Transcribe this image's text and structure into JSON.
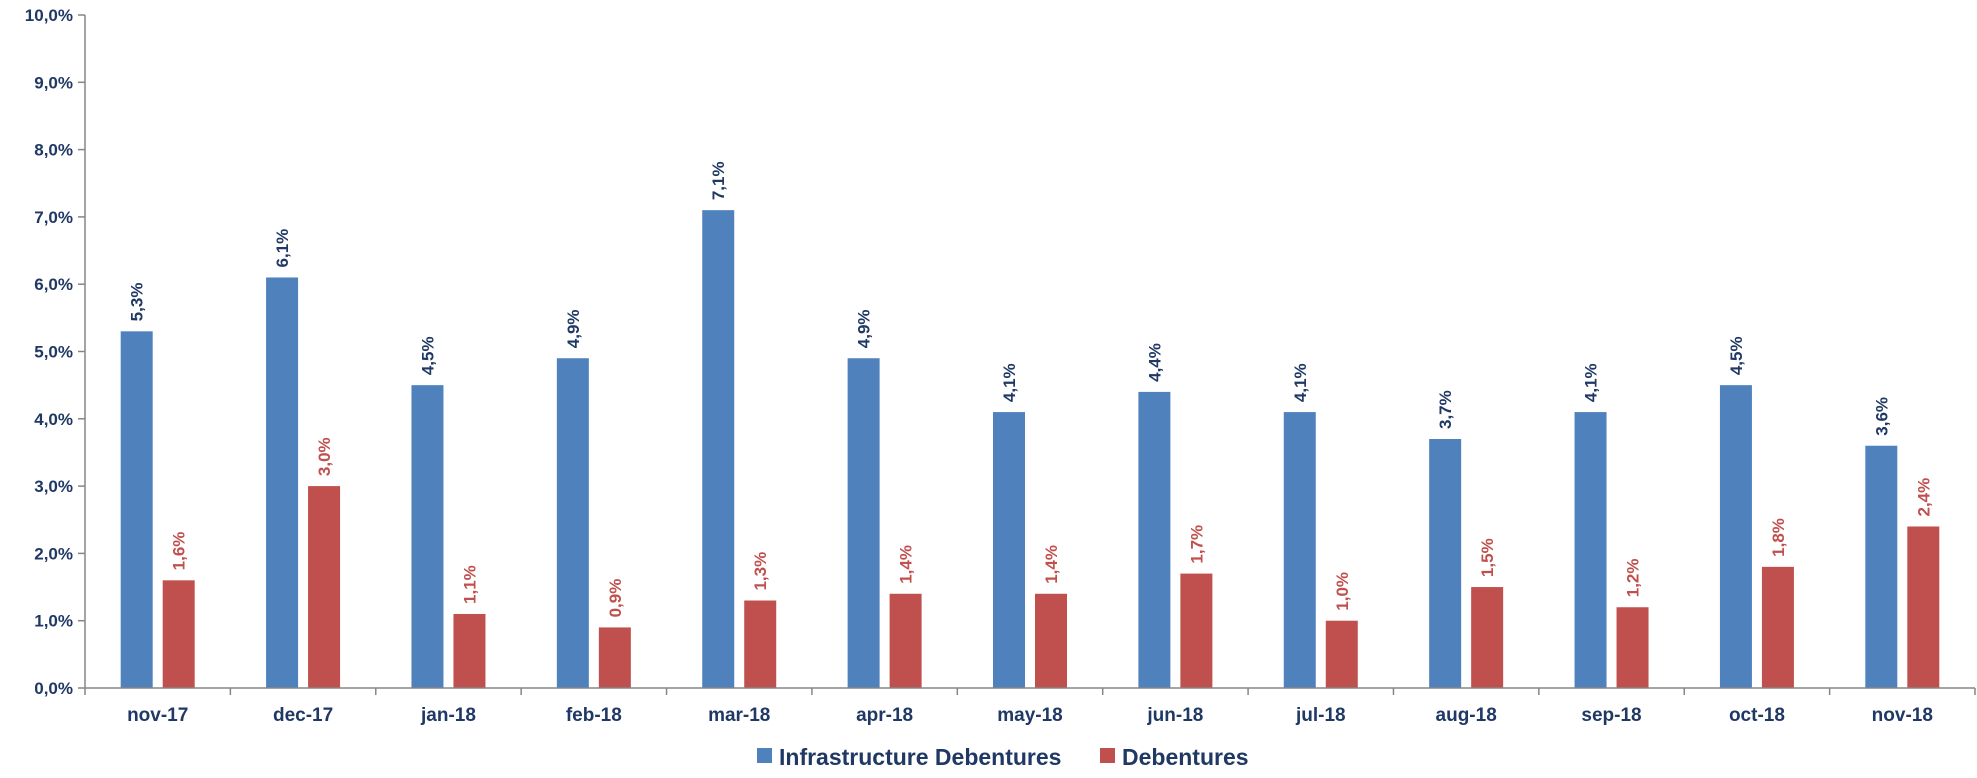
{
  "chart_data": {
    "type": "bar",
    "categories": [
      "nov-17",
      "dec-17",
      "jan-18",
      "feb-18",
      "mar-18",
      "apr-18",
      "may-18",
      "jun-18",
      "jul-18",
      "aug-18",
      "sep-18",
      "oct-18",
      "nov-18"
    ],
    "series": [
      {
        "name": "Infrastructure Debentures",
        "color": "#4f81bd",
        "label_color": "#1f3864",
        "values": [
          5.3,
          6.1,
          4.5,
          4.9,
          7.1,
          4.9,
          4.1,
          4.4,
          4.1,
          3.7,
          4.1,
          4.5,
          3.6
        ],
        "labels": [
          "5,3%",
          "6,1%",
          "4,5%",
          "4,9%",
          "7,1%",
          "4,9%",
          "4,1%",
          "4,4%",
          "4,1%",
          "3,7%",
          "4,1%",
          "4,5%",
          "3,6%"
        ]
      },
      {
        "name": "Debentures",
        "color": "#c0504d",
        "label_color": "#c0504d",
        "values": [
          1.6,
          3.0,
          1.1,
          0.9,
          1.3,
          1.4,
          1.4,
          1.7,
          1.0,
          1.5,
          1.2,
          1.8,
          2.4
        ],
        "labels": [
          "1,6%",
          "3,0%",
          "1,1%",
          "0,9%",
          "1,3%",
          "1,4%",
          "1,4%",
          "1,7%",
          "1,0%",
          "1,5%",
          "1,2%",
          "1,8%",
          "2,4%"
        ]
      }
    ],
    "ylim": [
      0,
      10
    ],
    "yticks": [
      0,
      1,
      2,
      3,
      4,
      5,
      6,
      7,
      8,
      9,
      10
    ],
    "ytick_labels": [
      "0,0%",
      "1,0%",
      "2,0%",
      "3,0%",
      "4,0%",
      "5,0%",
      "6,0%",
      "7,0%",
      "8,0%",
      "9,0%",
      "10,0%"
    ],
    "grid": false,
    "legend_position": "bottom-center",
    "title": "",
    "xlabel": "",
    "ylabel": ""
  }
}
